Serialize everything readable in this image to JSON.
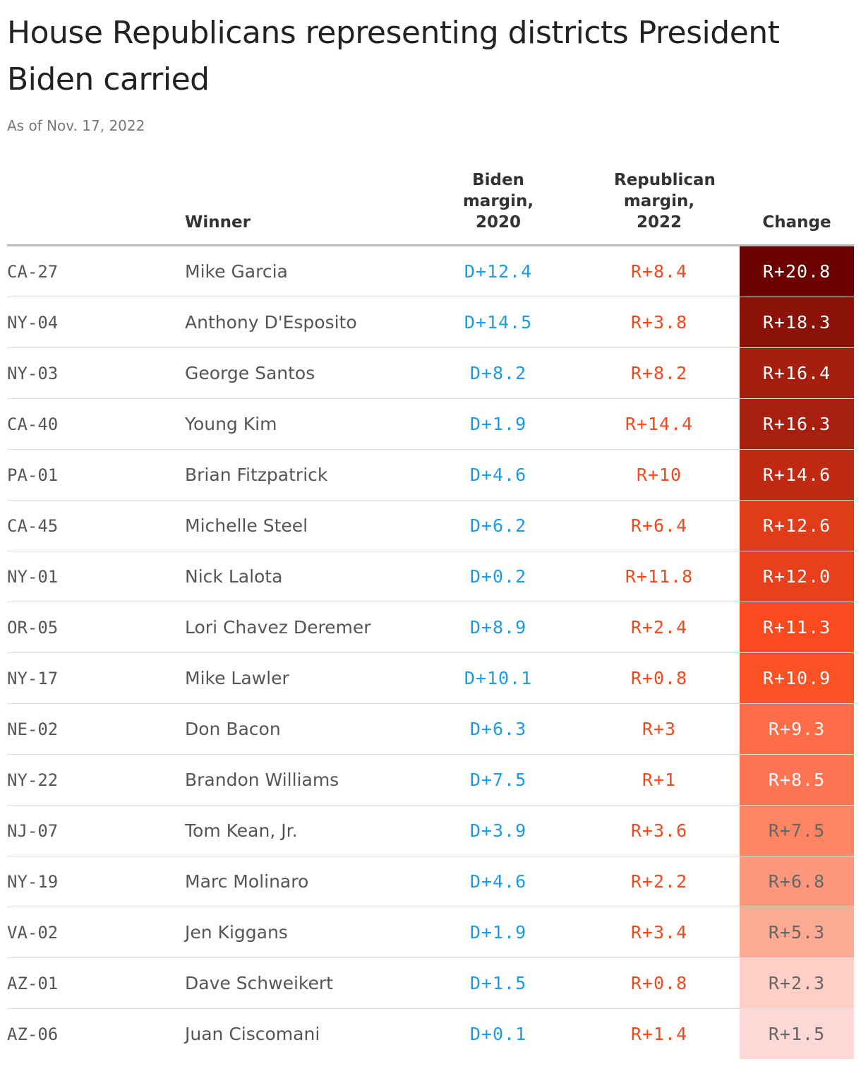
{
  "header": {
    "title": "House Republicans representing districts President Biden carried",
    "subtitle": "As of Nov. 17, 2022"
  },
  "table": {
    "columns": {
      "winner": "Winner",
      "biden": "Biden margin, 2020",
      "rep": "Republican margin, 2022",
      "change": "Change"
    },
    "biden_color": "#1d9be6",
    "rep_color": "#f04a1e",
    "rows": [
      {
        "district": "CA-27",
        "winner": "Mike Garcia",
        "biden": "D+12.4",
        "rep": "R+8.4",
        "change": "R+20.8",
        "change_fill": "#6b0000"
      },
      {
        "district": "NY-04",
        "winner": "Anthony D'Esposito",
        "biden": "D+14.5",
        "rep": "R+3.8",
        "change": "R+18.3",
        "change_fill": "#8b1208"
      },
      {
        "district": "NY-03",
        "winner": "George Santos",
        "biden": "D+8.2",
        "rep": "R+8.2",
        "change": "R+16.4",
        "change_fill": "#a51e0e"
      },
      {
        "district": "CA-40",
        "winner": "Young Kim",
        "biden": "D+1.9",
        "rep": "R+14.4",
        "change": "R+16.3",
        "change_fill": "#a71f0f"
      },
      {
        "district": "PA-01",
        "winner": "Brian Fitzpatrick",
        "biden": "D+4.6",
        "rep": "R+10",
        "change": "R+14.6",
        "change_fill": "#c02a12"
      },
      {
        "district": "CA-45",
        "winner": "Michelle Steel",
        "biden": "D+6.2",
        "rep": "R+6.4",
        "change": "R+12.6",
        "change_fill": "#e03c1a"
      },
      {
        "district": "NY-01",
        "winner": "Nick Lalota",
        "biden": "D+0.2",
        "rep": "R+11.8",
        "change": "R+12.0",
        "change_fill": "#e8401c"
      },
      {
        "district": "OR-05",
        "winner": "Lori Chavez Deremer",
        "biden": "D+8.9",
        "rep": "R+2.4",
        "change": "R+11.3",
        "change_fill": "#fb4a20"
      },
      {
        "district": "NY-17",
        "winner": "Mike Lawler",
        "biden": "D+10.1",
        "rep": "R+0.8",
        "change": "R+10.9",
        "change_fill": "#fd5126"
      },
      {
        "district": "NE-02",
        "winner": "Don Bacon",
        "biden": "D+6.3",
        "rep": "R+3",
        "change": "R+9.3",
        "change_fill": "#ff6c48"
      },
      {
        "district": "NY-22",
        "winner": "Brandon Williams",
        "biden": "D+7.5",
        "rep": "R+1",
        "change": "R+8.5",
        "change_fill": "#ff7553"
      },
      {
        "district": "NJ-07",
        "winner": "Tom Kean, Jr.",
        "biden": "D+3.9",
        "rep": "R+3.6",
        "change": "R+7.5",
        "change_fill": "#fd8564"
      },
      {
        "district": "NY-19",
        "winner": "Marc Molinaro",
        "biden": "D+4.6",
        "rep": "R+2.2",
        "change": "R+6.8",
        "change_fill": "#fc977b"
      },
      {
        "district": "VA-02",
        "winner": "Jen Kiggans",
        "biden": "D+1.9",
        "rep": "R+3.4",
        "change": "R+5.3",
        "change_fill": "#fdaa94"
      },
      {
        "district": "AZ-01",
        "winner": "Dave Schweikert",
        "biden": "D+1.5",
        "rep": "R+0.8",
        "change": "R+2.3",
        "change_fill": "#fdcfc6"
      },
      {
        "district": "AZ-06",
        "winner": "Juan Ciscomani",
        "biden": "D+0.1",
        "rep": "R+1.4",
        "change": "R+1.5",
        "change_fill": "#fed8d6"
      }
    ]
  }
}
